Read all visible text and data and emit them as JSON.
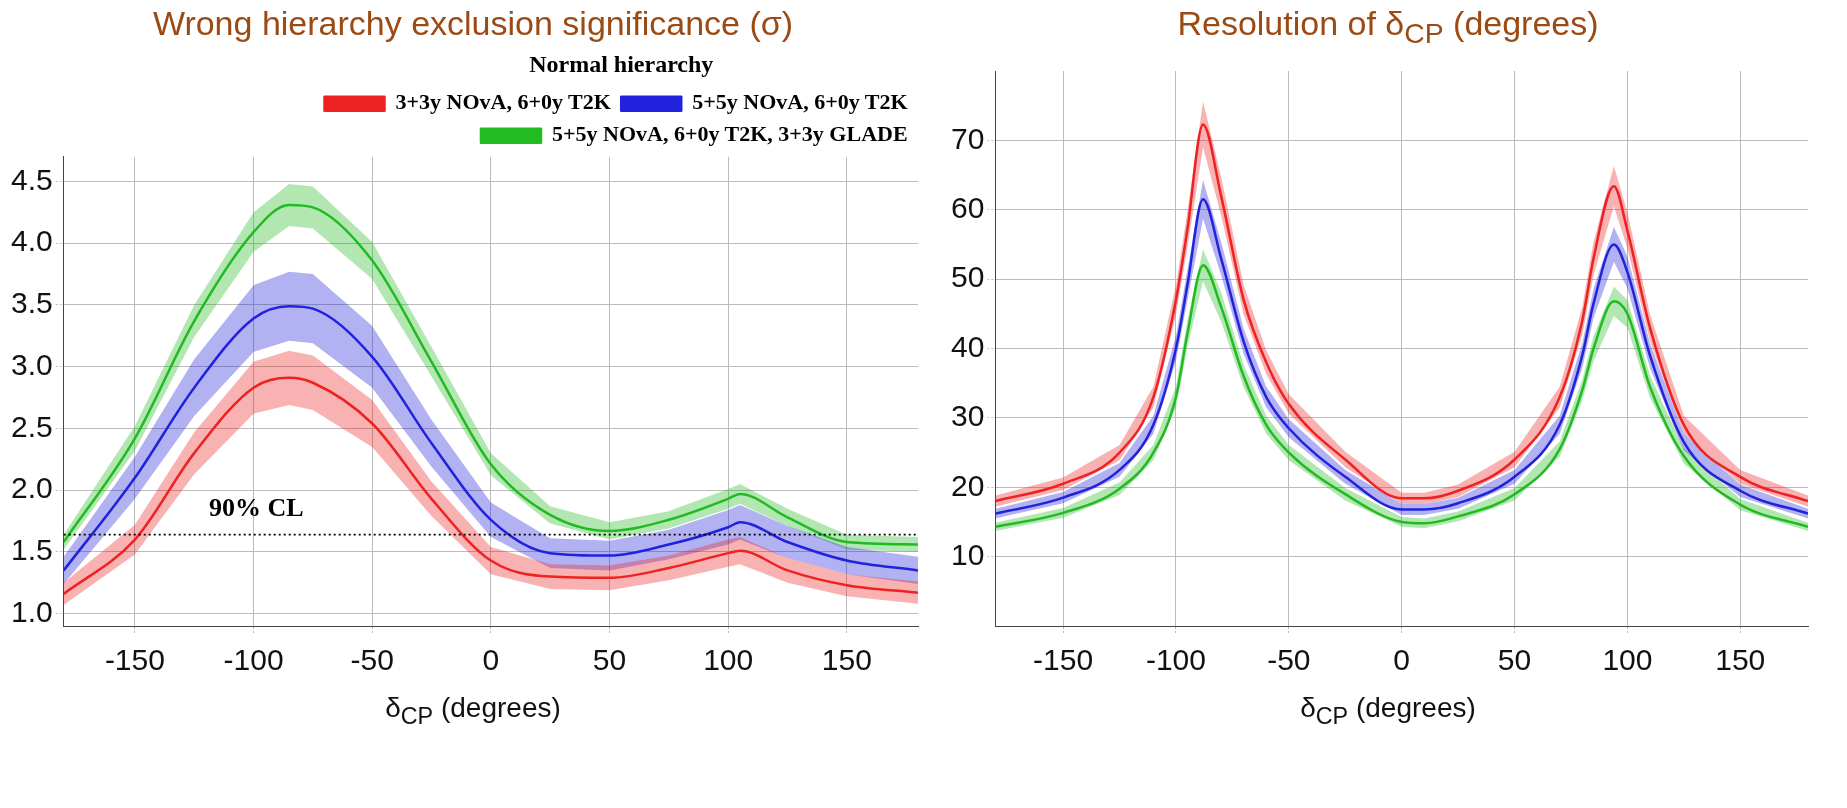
{
  "chart_data": [
    {
      "type": "line",
      "title": "Wrong hierarchy exclusion significance (σ)",
      "xlabel": "δ$_{CP}$ (degrees)",
      "legend_title": "Normal hierarchy",
      "legend": "top right",
      "grid": true,
      "marker": "none",
      "line_style": "solid",
      "x": [
        -180,
        -150,
        -125,
        -100,
        -85,
        -75,
        -50,
        -25,
        0,
        25,
        50,
        75,
        100,
        105,
        125,
        150,
        180
      ],
      "xlim": [
        -180,
        180
      ],
      "xticks": [
        -150,
        -100,
        -50,
        0,
        50,
        100,
        150
      ],
      "ylim": [
        0.9,
        4.7
      ],
      "yticks": [
        {
          "value": 1,
          "label": "1.0"
        },
        1.5,
        {
          "value": 2,
          "label": "2.0"
        },
        2.5,
        {
          "value": 3,
          "label": "3.0"
        },
        3.5,
        {
          "value": 4,
          "label": "4.0"
        },
        4.5
      ],
      "ref_lines": [
        {
          "axis": "y",
          "value": 1.64,
          "label": "90% CL",
          "line_style": "dotted"
        }
      ],
      "series": [
        {
          "name": "3+3y NOvA, 6+0y T2K",
          "color": "#ee2222",
          "values": [
            1.16,
            1.6,
            2.3,
            2.83,
            2.91,
            2.87,
            2.54,
            1.93,
            1.43,
            1.3,
            1.29,
            1.37,
            1.49,
            1.51,
            1.35,
            1.23,
            1.17
          ],
          "lower": [
            1.07,
            1.48,
            2.13,
            2.62,
            2.69,
            2.65,
            2.35,
            1.79,
            1.32,
            1.2,
            1.19,
            1.27,
            1.38,
            1.4,
            1.25,
            1.14,
            1.08
          ],
          "upper": [
            1.25,
            1.72,
            2.47,
            3.04,
            3.13,
            3.09,
            2.73,
            2.07,
            1.54,
            1.4,
            1.39,
            1.47,
            1.6,
            1.62,
            1.45,
            1.32,
            1.26
          ]
        },
        {
          "name": "5+5y NOvA, 6+0y T2K",
          "color": "#2222dd",
          "values": [
            1.35,
            2.1,
            2.83,
            3.39,
            3.49,
            3.47,
            3.08,
            2.38,
            1.76,
            1.49,
            1.47,
            1.56,
            1.7,
            1.74,
            1.58,
            1.43,
            1.35
          ],
          "lower": [
            1.24,
            1.93,
            2.6,
            3.12,
            3.21,
            3.19,
            2.83,
            2.19,
            1.62,
            1.37,
            1.35,
            1.44,
            1.56,
            1.6,
            1.45,
            1.32,
            1.24
          ],
          "upper": [
            1.46,
            2.27,
            3.06,
            3.66,
            3.77,
            3.75,
            3.33,
            2.57,
            1.9,
            1.61,
            1.59,
            1.68,
            1.84,
            1.88,
            1.71,
            1.54,
            1.46
          ]
        },
        {
          "name": "5+5y NOvA, 6+0y T2K, 3+3y GLADE",
          "color": "#22bb22",
          "values": [
            1.58,
            2.42,
            3.37,
            4.09,
            4.31,
            4.29,
            3.86,
            3.04,
            2.21,
            1.8,
            1.67,
            1.76,
            1.93,
            1.97,
            1.78,
            1.58,
            1.56
          ],
          "lower": [
            1.52,
            2.32,
            3.24,
            3.93,
            4.14,
            4.12,
            3.71,
            2.92,
            2.12,
            1.73,
            1.6,
            1.69,
            1.85,
            1.89,
            1.71,
            1.52,
            1.5
          ],
          "upper": [
            1.64,
            2.52,
            3.5,
            4.25,
            4.48,
            4.46,
            4.01,
            3.16,
            2.3,
            1.87,
            1.74,
            1.83,
            2.01,
            2.05,
            1.85,
            1.64,
            1.62
          ]
        }
      ]
    },
    {
      "type": "line",
      "title": "Resolution of  δ$_{CP}$ (degrees)",
      "xlabel": "δ$_{CP}$ (degrees)",
      "grid": true,
      "marker": "none",
      "line_style": "solid",
      "x": [
        -180,
        -150,
        -125,
        -110,
        -100,
        -95,
        -88,
        -80,
        -70,
        -60,
        -50,
        -25,
        0,
        10,
        25,
        50,
        70,
        80,
        85,
        94,
        100,
        110,
        125,
        150,
        180
      ],
      "xlim": [
        -180,
        180
      ],
      "xticks": [
        -150,
        -100,
        -50,
        0,
        50,
        100,
        150
      ],
      "ylim": [
        0,
        80
      ],
      "yticks": [
        10,
        20,
        30,
        40,
        50,
        60,
        70
      ],
      "series": [
        {
          "color": "#ee2222",
          "values": [
            18,
            20.5,
            25,
            33,
            47,
            57,
            72.3,
            62,
            47,
            38,
            32,
            24,
            18.4,
            18.4,
            19.5,
            24,
            33,
            44,
            53,
            63.4,
            57,
            43,
            29,
            21.5,
            18
          ],
          "lower": [
            17.2,
            19.6,
            23.9,
            31.5,
            44.9,
            54.4,
            69,
            59.2,
            44.9,
            36.3,
            30.6,
            22.9,
            17.6,
            17.6,
            18.6,
            22.9,
            31.5,
            42,
            50.6,
            60.5,
            54.4,
            41.1,
            27.7,
            20.5,
            17.2
          ],
          "upper": [
            18.8,
            21.4,
            26.1,
            34.5,
            49.1,
            59.6,
            75.6,
            64.8,
            49.1,
            39.7,
            33.4,
            25.1,
            19.2,
            19.2,
            20.4,
            25.1,
            34.5,
            46,
            55.4,
            66.3,
            59.6,
            44.9,
            30.3,
            22.5,
            18.8
          ]
        },
        {
          "color": "#2222dd",
          "values": [
            16.2,
            18.5,
            22.5,
            29,
            40,
            49,
            61.5,
            53,
            41,
            33,
            28.5,
            21.5,
            16.8,
            16.8,
            17.7,
            21.5,
            29,
            39,
            46.5,
            55,
            51,
            39,
            26.5,
            19.5,
            16.2
          ],
          "lower": [
            15.5,
            17.7,
            21.5,
            27.7,
            38.2,
            46.8,
            58.7,
            50.6,
            39.2,
            31.5,
            27.2,
            20.5,
            16,
            16,
            16.9,
            20.5,
            27.7,
            37.2,
            44.4,
            52.5,
            48.7,
            37.2,
            25.3,
            18.6,
            15.5
          ],
          "upper": [
            16.9,
            19.3,
            23.5,
            30.3,
            41.8,
            51.2,
            64.3,
            55.4,
            42.8,
            34.5,
            29.8,
            22.5,
            17.6,
            17.6,
            18.5,
            22.5,
            30.3,
            40.8,
            48.6,
            57.5,
            53.3,
            40.8,
            27.7,
            20.4,
            16.9
          ]
        },
        {
          "color": "#22bb22",
          "values": [
            14.3,
            16.3,
            19.8,
            25,
            33,
            42,
            52,
            46,
            36,
            29,
            25,
            19,
            15,
            14.8,
            15.8,
            19,
            25.5,
            34,
            40,
            46.8,
            45,
            34.5,
            24.5,
            17.5,
            14.3
          ],
          "lower": [
            13.7,
            15.6,
            18.9,
            23.9,
            31.5,
            40.1,
            49.7,
            43.9,
            34.4,
            27.7,
            23.9,
            18.1,
            14.3,
            14.1,
            15.1,
            18.1,
            24.4,
            32.5,
            38.2,
            44.7,
            43,
            32.9,
            23.4,
            16.7,
            13.7
          ],
          "upper": [
            14.9,
            17,
            20.7,
            26.1,
            34.5,
            43.9,
            54.3,
            48.1,
            37.6,
            30.3,
            26.1,
            19.9,
            15.7,
            15.5,
            16.5,
            19.9,
            26.6,
            35.5,
            41.8,
            48.9,
            47,
            36.1,
            25.6,
            18.3,
            14.9
          ]
        }
      ]
    }
  ]
}
